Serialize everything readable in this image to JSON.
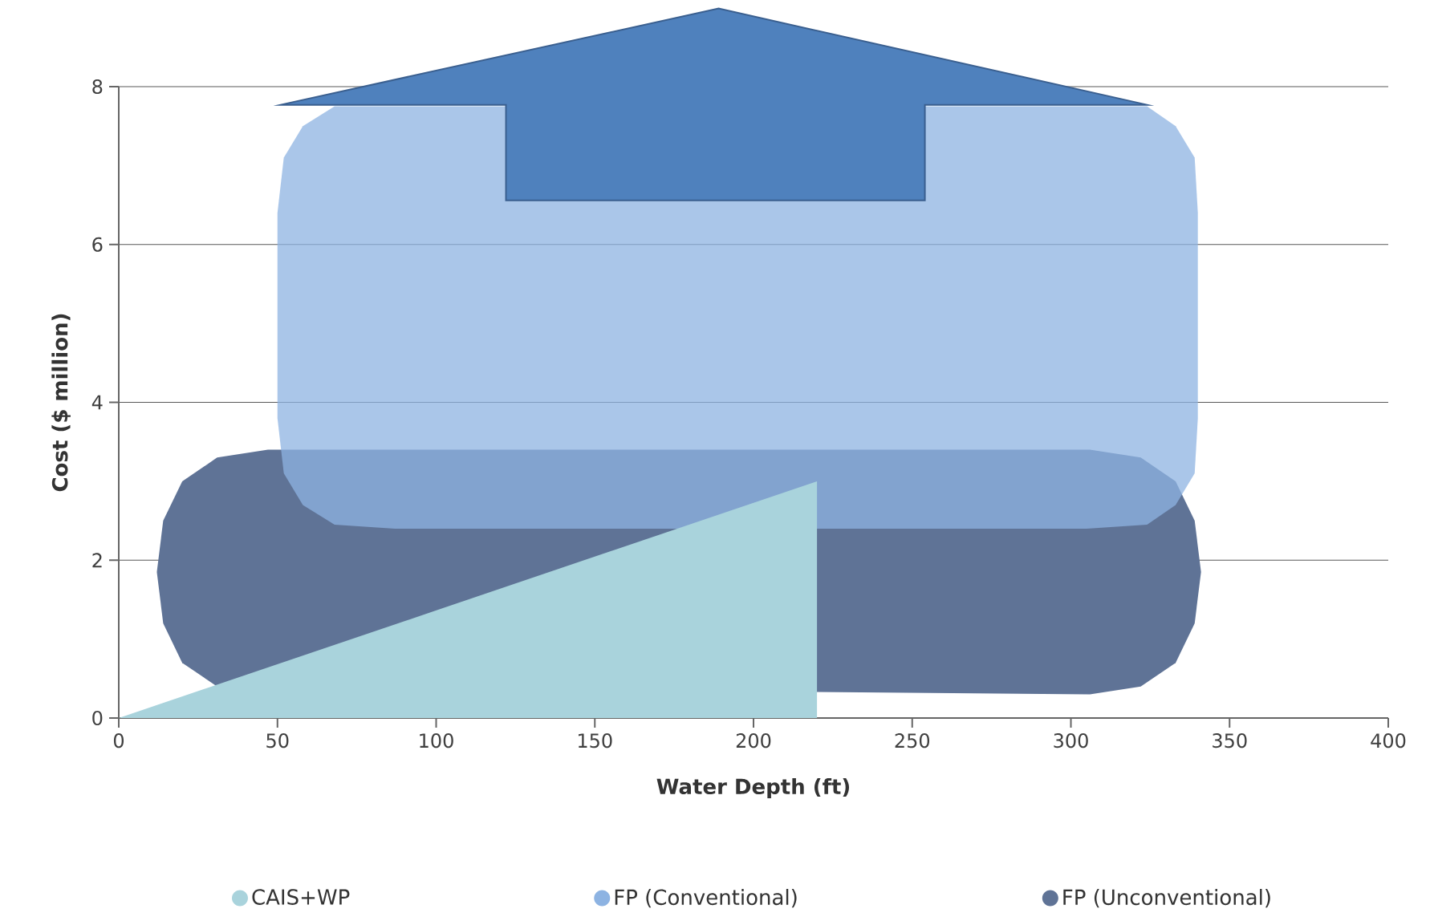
{
  "chart_data": {
    "type": "area",
    "xlabel": "Water Depth (ft)",
    "ylabel": "Cost ($ million)",
    "xlim": [
      0,
      400
    ],
    "ylim": [
      0,
      8
    ],
    "xticks": [
      0,
      50,
      100,
      150,
      200,
      250,
      300,
      350,
      400
    ],
    "yticks": [
      0,
      2,
      4,
      6,
      8
    ],
    "grid": "y",
    "legend": "bottom",
    "series": [
      {
        "name": "CAIS+WP",
        "color": "#a9d3dc",
        "x": [
          0,
          220,
          220
        ],
        "values": [
          0,
          3,
          0
        ]
      },
      {
        "name": "FP (Conventional)",
        "color": "#8db3e2",
        "x": [
          50,
          52,
          58,
          68,
          324,
          333,
          339,
          340,
          340,
          339,
          333,
          324,
          305,
          87,
          68,
          58,
          52,
          50
        ],
        "values": [
          6.4,
          7.1,
          7.5,
          7.75,
          7.75,
          7.5,
          7.1,
          6.4,
          3.8,
          3.1,
          2.7,
          2.45,
          2.4,
          2.4,
          2.45,
          2.7,
          3.1,
          3.8
        ]
      },
      {
        "name": "FP (Unconventional)",
        "color": "#5f7396",
        "x": [
          47,
          306,
          322,
          333,
          339,
          341,
          339,
          333,
          322,
          306,
          47,
          31,
          20,
          14,
          12,
          14,
          20,
          31
        ],
        "values": [
          3.4,
          3.4,
          3.3,
          3.0,
          2.5,
          1.85,
          1.2,
          0.7,
          0.4,
          0.3,
          null,
          0.4,
          0.7,
          1.2,
          1.85,
          2.5,
          3.0,
          3.3
        ]
      }
    ]
  }
}
